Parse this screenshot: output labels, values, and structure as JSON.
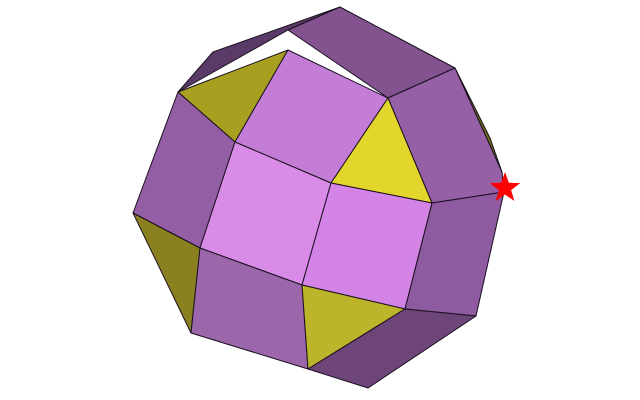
{
  "figure": {
    "type": "polyhedron",
    "shape": "rhombicuboctahedron",
    "background": "#ffffff",
    "edge_color": "#1a1020",
    "marker": {
      "icon": "star-icon",
      "color": "#ff0000"
    },
    "face_colors": {
      "square_front_a": "#d98be8",
      "square_front_b": "#d384e6",
      "square_top_center": "#c47dd6",
      "square_left": "#935ea4",
      "square_bottom_left": "#9c66aa",
      "square_right": "#8e5aa0",
      "square_upper_right": "#9560a6",
      "square_top": "#82538f",
      "square_bottom_right": "#6d4578",
      "square_back_left": "#5a3a66",
      "triangle_center": "#e2d62c",
      "triangle_bottom": "#bcb42a",
      "triangle_left": "#8a8020",
      "triangle_top_left": "#a89f20",
      "triangle_right_edge": "#6f6a1c"
    }
  }
}
